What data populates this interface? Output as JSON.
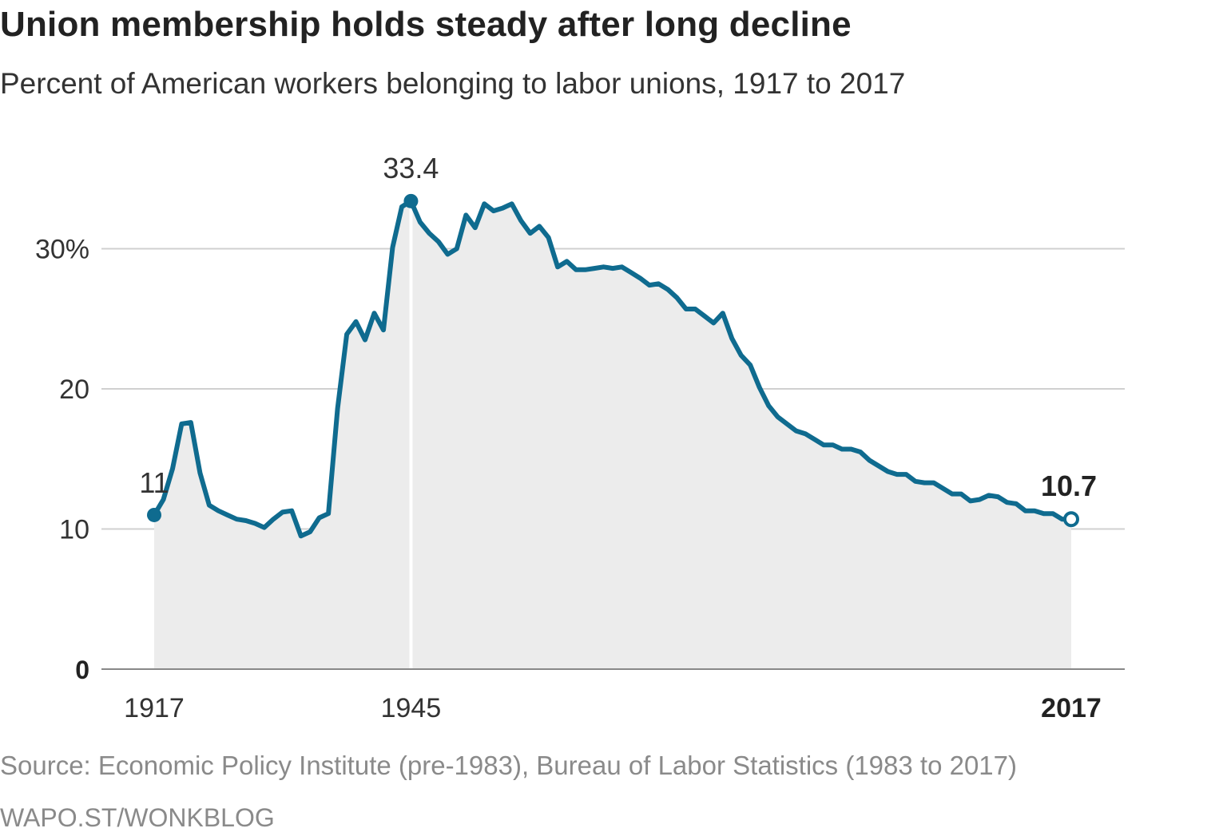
{
  "title": "Union membership holds steady after long decline",
  "subtitle": "Percent of American workers belonging to labor unions, 1917 to 2017",
  "source": "Source: Economic Policy Institute (pre-1983), Bureau of Labor Statistics (1983 to 2017)",
  "credit": "WAPO.ST/WONKBLOG",
  "colors": {
    "line": "#0f6b8f",
    "area": "#ececec",
    "grid": "#d0d0d0",
    "axis": "#888888",
    "text": "#333333"
  },
  "chart_data": {
    "type": "area",
    "ylim": [
      0,
      40
    ],
    "xlim": [
      1917,
      2017
    ],
    "y_ticks": [
      {
        "value": 0,
        "label": "0"
      },
      {
        "value": 10,
        "label": "10"
      },
      {
        "value": 20,
        "label": "20"
      },
      {
        "value": 30,
        "label": "30%"
      }
    ],
    "x_ticks": [
      {
        "value": 1917,
        "label": "1917"
      },
      {
        "value": 1945,
        "label": "1945"
      },
      {
        "value": 2017,
        "label": "2017"
      }
    ],
    "annotations": [
      {
        "x": 1917,
        "y": 11,
        "label": "11"
      },
      {
        "x": 1945,
        "y": 33.4,
        "label": "33.4"
      },
      {
        "x": 2017,
        "y": 10.7,
        "label": "10.7"
      }
    ],
    "series": [
      {
        "x": [
          1917,
          1918,
          1919,
          1920,
          1921,
          1922,
          1923,
          1924,
          1925,
          1926,
          1927,
          1928,
          1929,
          1930,
          1931,
          1932,
          1933,
          1934,
          1935,
          1936,
          1937,
          1938,
          1939,
          1940,
          1941,
          1942,
          1943,
          1944,
          1945,
          1946,
          1947,
          1948,
          1949,
          1950,
          1951,
          1952,
          1953,
          1954,
          1955,
          1956,
          1957,
          1958,
          1959,
          1960,
          1961,
          1962,
          1963,
          1964,
          1965,
          1966,
          1967,
          1968,
          1969,
          1970,
          1971,
          1972,
          1973,
          1974,
          1975,
          1976,
          1977,
          1978,
          1979,
          1980,
          1981,
          1982,
          1983,
          1984,
          1985,
          1986,
          1987,
          1988,
          1989,
          1990,
          1991,
          1992,
          1993,
          1994,
          1995,
          1996,
          1997,
          1998,
          1999,
          2000,
          2001,
          2002,
          2003,
          2004,
          2005,
          2006,
          2007,
          2008,
          2009,
          2010,
          2011,
          2012,
          2013,
          2014,
          2015,
          2016,
          2017
        ],
        "values": [
          11.0,
          12.1,
          14.3,
          17.5,
          17.6,
          14.0,
          11.7,
          11.3,
          11.0,
          10.7,
          10.6,
          10.4,
          10.1,
          10.7,
          11.2,
          11.3,
          9.5,
          9.8,
          10.8,
          11.1,
          18.6,
          23.9,
          24.8,
          23.5,
          25.4,
          24.2,
          30.1,
          33.0,
          33.4,
          31.9,
          31.1,
          30.5,
          29.6,
          30.0,
          32.4,
          31.5,
          33.2,
          32.7,
          32.9,
          33.2,
          32.0,
          31.1,
          31.6,
          30.8,
          28.7,
          29.1,
          28.5,
          28.5,
          28.6,
          28.7,
          28.6,
          28.7,
          28.3,
          27.9,
          27.4,
          27.5,
          27.1,
          26.5,
          25.7,
          25.7,
          25.2,
          24.7,
          25.4,
          23.6,
          22.4,
          21.7,
          20.1,
          18.8,
          18.0,
          17.5,
          17.0,
          16.8,
          16.4,
          16.0,
          16.0,
          15.7,
          15.7,
          15.5,
          14.9,
          14.5,
          14.1,
          13.9,
          13.9,
          13.4,
          13.3,
          13.3,
          12.9,
          12.5,
          12.5,
          12.0,
          12.1,
          12.4,
          12.3,
          11.9,
          11.8,
          11.3,
          11.3,
          11.1,
          11.1,
          10.7,
          10.7
        ]
      }
    ]
  }
}
